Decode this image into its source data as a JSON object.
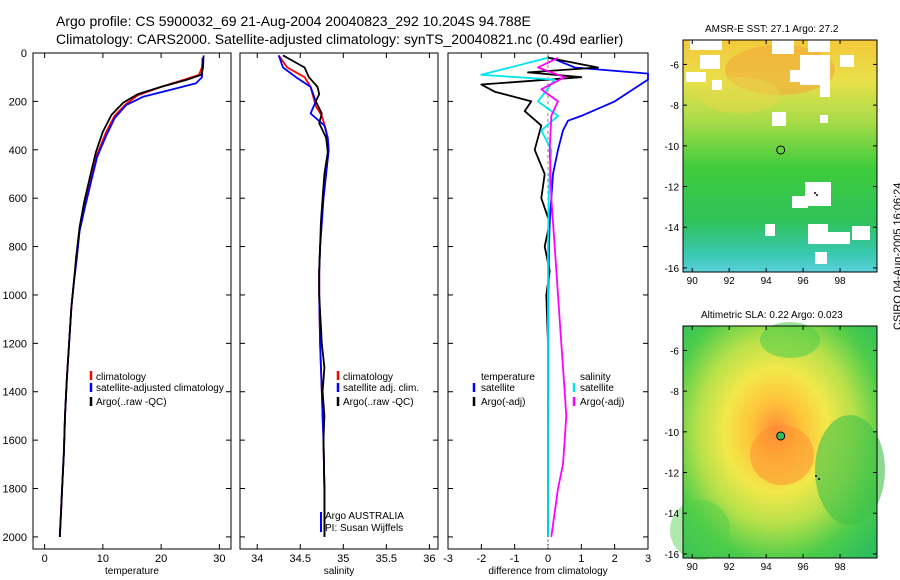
{
  "header": {
    "title_line1": "Argo profile: CS 5900032_69 21-Aug-2004 20040823_292 10.204S 94.788E",
    "title_line2": "Climatology: CARS2000. Satellite-adjusted climatology: synTS_20040821.nc (0.49d earlier)"
  },
  "side_label": "CSIRO 04-Aug-2005 16:06:24",
  "colors": {
    "climatology": "#ff0000",
    "satellite": "#0000ff",
    "argo": "#000000",
    "salinity": "#ff00ff",
    "salinity_satellite": "#00e5ee"
  },
  "chart_data": [
    {
      "type": "line",
      "name": "temperature-panel",
      "xlabel": "temperature",
      "ylabel": "",
      "xlim": [
        -2,
        32
      ],
      "ylim": [
        2050,
        0
      ],
      "y_reversed": true,
      "xticks": [
        0,
        10,
        20,
        30
      ],
      "yticks": [
        0,
        200,
        400,
        600,
        800,
        1000,
        1200,
        1400,
        1600,
        1800,
        2000
      ],
      "legend": [
        "climatology",
        "satellite-adjusted climatology",
        "Argo(..raw -QC)"
      ],
      "series": [
        {
          "name": "climatology",
          "color_key": "climatology",
          "x": [
            27.2,
            27.0,
            26.5,
            24,
            20,
            16,
            14,
            12,
            10.5,
            9,
            8,
            7,
            6,
            5.5,
            5,
            4.6,
            4.2,
            3.8,
            3.5,
            3.3,
            3.0,
            2.8,
            2.6
          ],
          "y": [
            20,
            60,
            90,
            110,
            140,
            175,
            210,
            260,
            330,
            420,
            520,
            620,
            730,
            850,
            950,
            1050,
            1200,
            1350,
            1500,
            1650,
            1800,
            1900,
            2000
          ]
        },
        {
          "name": "satellite-adjusted climatology",
          "color_key": "satellite",
          "x": [
            27.1,
            27.1,
            27.0,
            26,
            22,
            17,
            14,
            12,
            10.5,
            9,
            8,
            7,
            6,
            5.5,
            5,
            4.6,
            4.2,
            3.8,
            3.5,
            3.3,
            3.0,
            2.8,
            2.6
          ],
          "y": [
            20,
            60,
            100,
            125,
            150,
            180,
            215,
            270,
            345,
            430,
            530,
            630,
            735,
            850,
            950,
            1050,
            1200,
            1350,
            1500,
            1650,
            1800,
            1900,
            2000
          ]
        },
        {
          "name": "Argo(..raw -QC)",
          "color_key": "argo",
          "x": [
            27.3,
            27.2,
            26.9,
            24.5,
            20,
            16,
            13.5,
            11.5,
            10,
            8.8,
            7.8,
            6.8,
            6,
            5.4,
            5,
            4.6,
            4.2,
            3.8,
            3.5,
            3.3,
            3.0,
            2.8,
            2.6
          ],
          "y": [
            10,
            60,
            90,
            110,
            140,
            170,
            205,
            255,
            325,
            410,
            510,
            615,
            720,
            845,
            950,
            1050,
            1200,
            1350,
            1500,
            1650,
            1800,
            1900,
            2000
          ]
        }
      ]
    },
    {
      "type": "line",
      "name": "salinity-panel",
      "xlabel": "salinity",
      "ylabel": "",
      "xlim": [
        33.8,
        36.1
      ],
      "ylim": [
        2050,
        0
      ],
      "y_reversed": true,
      "xticks": [
        34,
        34.5,
        35,
        35.5,
        36
      ],
      "legend": [
        "climatology",
        "satellite adj. clim.",
        "Argo(..raw -QC)"
      ],
      "annotation": [
        "Argo AUSTRALIA",
        "PI: Susan Wijffels"
      ],
      "series": [
        {
          "name": "climatology",
          "color_key": "climatology",
          "x": [
            34.25,
            34.35,
            34.55,
            34.62,
            34.65,
            34.68,
            34.75,
            34.8,
            34.83,
            34.8,
            34.77,
            34.75,
            34.73,
            34.72,
            34.72,
            34.73,
            34.75,
            34.76,
            34.77,
            34.78,
            34.78,
            34.78
          ],
          "y": [
            10,
            60,
            100,
            140,
            180,
            220,
            260,
            320,
            400,
            500,
            600,
            700,
            800,
            900,
            1000,
            1200,
            1400,
            1500,
            1600,
            1800,
            1900,
            2000
          ]
        },
        {
          "name": "satellite adj. clim.",
          "color_key": "satellite",
          "x": [
            34.25,
            34.3,
            34.45,
            34.62,
            34.68,
            34.62,
            34.78,
            34.82,
            34.83,
            34.8,
            34.77,
            34.75,
            34.73,
            34.72,
            34.72,
            34.73,
            34.75,
            34.76,
            34.77,
            34.78,
            34.78,
            34.78
          ],
          "y": [
            10,
            60,
            100,
            140,
            200,
            250,
            300,
            350,
            400,
            500,
            600,
            700,
            800,
            900,
            1000,
            1200,
            1400,
            1500,
            1600,
            1800,
            1900,
            2000
          ]
        },
        {
          "name": "Argo(..raw -QC)",
          "color_key": "argo",
          "x": [
            34.3,
            34.55,
            34.6,
            34.7,
            34.72,
            34.68,
            34.75,
            34.72,
            34.8,
            34.82,
            34.78,
            34.76,
            34.74,
            34.73,
            34.72,
            34.72,
            34.75,
            34.78,
            34.76,
            34.78,
            34.77,
            34.78,
            34.78
          ],
          "y": [
            10,
            60,
            100,
            140,
            170,
            200,
            250,
            290,
            350,
            410,
            500,
            600,
            700,
            800,
            900,
            1000,
            1200,
            1300,
            1400,
            1500,
            1600,
            1800,
            2000
          ]
        }
      ]
    },
    {
      "type": "line",
      "name": "difference-panel",
      "xlabel": "difference from climatology",
      "ylabel": "",
      "xlim": [
        -3,
        3
      ],
      "ylim": [
        2050,
        0
      ],
      "y_reversed": true,
      "xticks": [
        -3,
        -2,
        -1,
        0,
        1,
        2,
        3
      ],
      "legend_left": [
        "temperature",
        "satellite",
        "Argo(-adj)"
      ],
      "legend_right": [
        "salinity",
        "satellite",
        "Argo(-adj)"
      ],
      "series": [
        {
          "name": "temperature satellite",
          "color_key": "satellite",
          "x": [
            0.1,
            0.8,
            3.0,
            3.0,
            2.0,
            1.0,
            0.6,
            0.45,
            0.3,
            0.15,
            0.1,
            0.05,
            0.03,
            0.02,
            0.01,
            0.01,
            0.01,
            0.0,
            0.0,
            0.0
          ],
          "y": [
            20,
            60,
            85,
            110,
            200,
            260,
            280,
            320,
            400,
            500,
            600,
            700,
            800,
            900,
            1000,
            1200,
            1400,
            1600,
            1800,
            2000
          ]
        },
        {
          "name": "temperature Argo(-adj)",
          "color_key": "argo",
          "x": [
            0.0,
            1.5,
            -0.6,
            1.0,
            -2.0,
            -1.6,
            -0.5,
            -0.7,
            -0.2,
            -0.4,
            -0.1,
            -0.2,
            0.05,
            -0.1,
            0.05,
            -0.05,
            0.0,
            0.0,
            0.0,
            0.0
          ],
          "y": [
            20,
            60,
            80,
            100,
            130,
            160,
            200,
            240,
            300,
            400,
            500,
            600,
            700,
            800,
            900,
            1000,
            1200,
            1400,
            1700,
            2000
          ]
        },
        {
          "name": "salinity satellite",
          "color_key": "salinity_satellite",
          "x": [
            0.0,
            -2.0,
            0.2,
            -0.3,
            0.3,
            -0.2,
            0.1,
            0.05,
            0.02,
            0.0,
            0.0,
            0.0,
            0.0,
            0.0
          ],
          "y": [
            20,
            90,
            110,
            200,
            260,
            320,
            400,
            500,
            600,
            800,
            1000,
            1400,
            1800,
            2000
          ]
        },
        {
          "name": "salinity Argo(-adj)",
          "color_key": "salinity",
          "x": [
            0.3,
            -0.3,
            0.5,
            -0.2,
            0.3,
            0.1,
            0.05,
            0.1,
            0.2,
            0.3,
            0.4,
            0.5,
            0.55,
            0.5,
            0.45,
            0.3,
            0.1
          ],
          "y": [
            20,
            60,
            100,
            150,
            200,
            260,
            400,
            600,
            800,
            1000,
            1200,
            1400,
            1500,
            1600,
            1700,
            1800,
            2000
          ]
        }
      ]
    },
    {
      "type": "heatmap",
      "name": "sst-map",
      "title": "AMSR-E SST: 27.1 Argo: 27.2",
      "xlim": [
        89.5,
        100
      ],
      "ylim": [
        -16.2,
        -4.8
      ],
      "xticks": [
        90,
        92,
        94,
        96,
        98
      ],
      "yticks": [
        -6,
        -8,
        -10,
        -12,
        -14,
        -16
      ],
      "float_position": [
        94.788,
        -10.204
      ]
    },
    {
      "type": "heatmap",
      "name": "sla-map",
      "title": "Altimetric SLA: 0.22 Argo: 0.023",
      "xlim": [
        89.5,
        100
      ],
      "ylim": [
        -16.2,
        -4.8
      ],
      "xticks": [
        90,
        92,
        94,
        96,
        98
      ],
      "yticks": [
        -6,
        -8,
        -10,
        -12,
        -14,
        -16
      ],
      "float_position": [
        94.788,
        -10.204
      ]
    }
  ]
}
